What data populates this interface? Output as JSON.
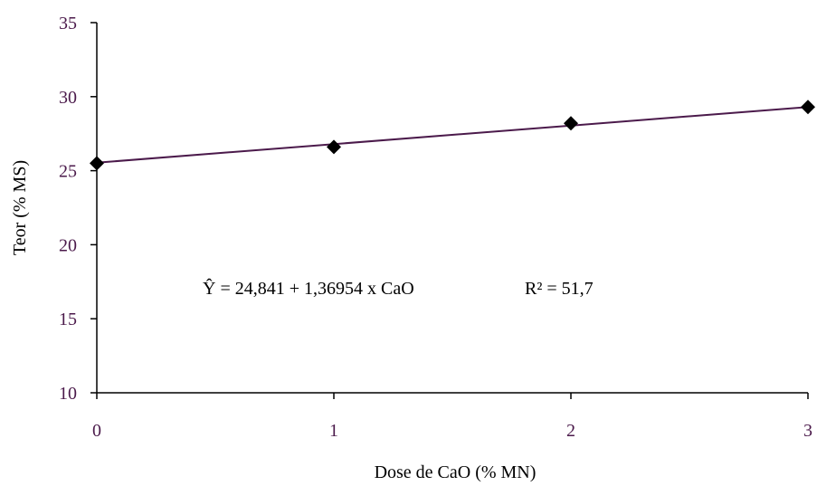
{
  "chart_data": {
    "type": "scatter",
    "xlabel": "Dose de CaO (% MN)",
    "ylabel": "Teor (% MS)",
    "xlim": [
      0,
      3
    ],
    "ylim": [
      10,
      35
    ],
    "x_ticks": [
      "0",
      "1",
      "2",
      "3"
    ],
    "y_ticks": [
      "10",
      "15",
      "20",
      "25",
      "30",
      "35"
    ],
    "grid": false,
    "series": [
      {
        "points": [
          {
            "x": 0,
            "y": 25.5
          },
          {
            "x": 1,
            "y": 26.6
          },
          {
            "x": 2,
            "y": 28.2
          },
          {
            "x": 3,
            "y": 29.3
          }
        ],
        "marker": "diamond",
        "color": "#000000"
      }
    ],
    "trendline": {
      "intercept": 24.841,
      "slope": 1.36954,
      "color": "#4b1a4b"
    },
    "annotations": {
      "equation": "Ŷ = 24,841 + 1,36954 x CaO",
      "r2": "R² = 51,7"
    }
  }
}
